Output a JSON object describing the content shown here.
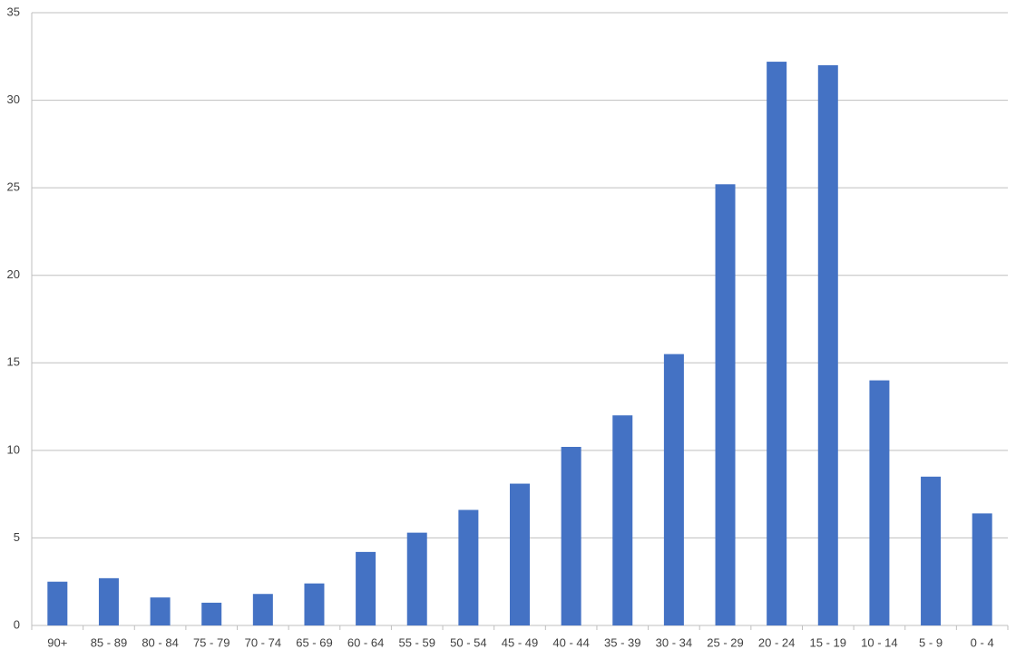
{
  "chart_data": {
    "type": "bar",
    "categories": [
      "90+",
      "85 - 89",
      "80 - 84",
      "75 - 79",
      "70 - 74",
      "65 - 69",
      "60 - 64",
      "55 - 59",
      "50 - 54",
      "45 - 49",
      "40 - 44",
      "35 - 39",
      "30 - 34",
      "25 - 29",
      "20 - 24",
      "15 - 19",
      "10 - 14",
      "5 - 9",
      "0 - 4"
    ],
    "values": [
      2.5,
      2.7,
      1.6,
      1.3,
      1.8,
      2.4,
      4.2,
      5.3,
      6.6,
      8.1,
      10.2,
      12.0,
      15.5,
      25.2,
      32.2,
      32.0,
      14.0,
      8.5,
      6.4
    ],
    "color": "#4472c4",
    "ylim": [
      0,
      35
    ],
    "yticks": [
      0,
      5,
      10,
      15,
      20,
      25,
      30,
      35
    ],
    "grid": true
  }
}
